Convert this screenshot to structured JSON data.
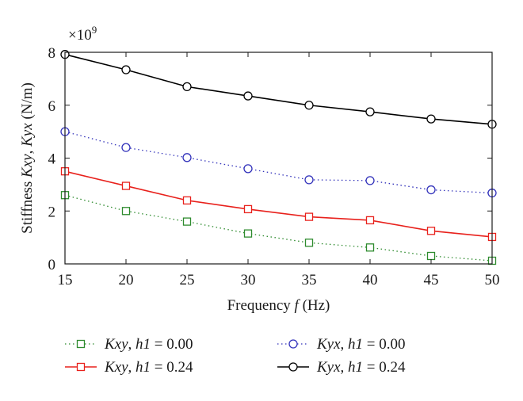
{
  "chart_data": {
    "type": "line",
    "xlabel": "Frequency f (Hz)",
    "ylabel": "Stiffness Kxy, Kyx (N/m)",
    "exponent_label": "×10^9",
    "x": [
      15,
      20,
      25,
      30,
      35,
      40,
      45,
      50
    ],
    "xlim": [
      15,
      50
    ],
    "ylim": [
      0,
      8
    ],
    "xticks": [
      15,
      20,
      25,
      30,
      35,
      40,
      45,
      50
    ],
    "yticks": [
      0,
      2,
      4,
      6,
      8
    ],
    "y_scale_factor": "1e9",
    "grid": false,
    "legend_position": "bottom",
    "series": [
      {
        "name": "Kxy, h1 = 0.00",
        "color": "#2e8b2e",
        "line_style": "dotted",
        "marker": "square",
        "values": [
          2.6,
          2.0,
          1.6,
          1.15,
          0.8,
          0.62,
          0.3,
          0.12
        ]
      },
      {
        "name": "Kxy, h1 = 0.24",
        "color": "#e8211c",
        "line_style": "solid",
        "marker": "square",
        "values": [
          3.5,
          2.95,
          2.4,
          2.07,
          1.78,
          1.65,
          1.25,
          1.02
        ]
      },
      {
        "name": "Kyx, h1 = 0.00",
        "color": "#3333bb",
        "line_style": "dotted",
        "marker": "circle",
        "values": [
          5.0,
          4.4,
          4.02,
          3.6,
          3.18,
          3.15,
          2.8,
          2.68
        ]
      },
      {
        "name": "Kyx, h1 = 0.24",
        "color": "#000000",
        "line_style": "solid",
        "marker": "circle",
        "values": [
          7.92,
          7.34,
          6.7,
          6.35,
          6.0,
          5.75,
          5.48,
          5.28
        ]
      }
    ]
  }
}
